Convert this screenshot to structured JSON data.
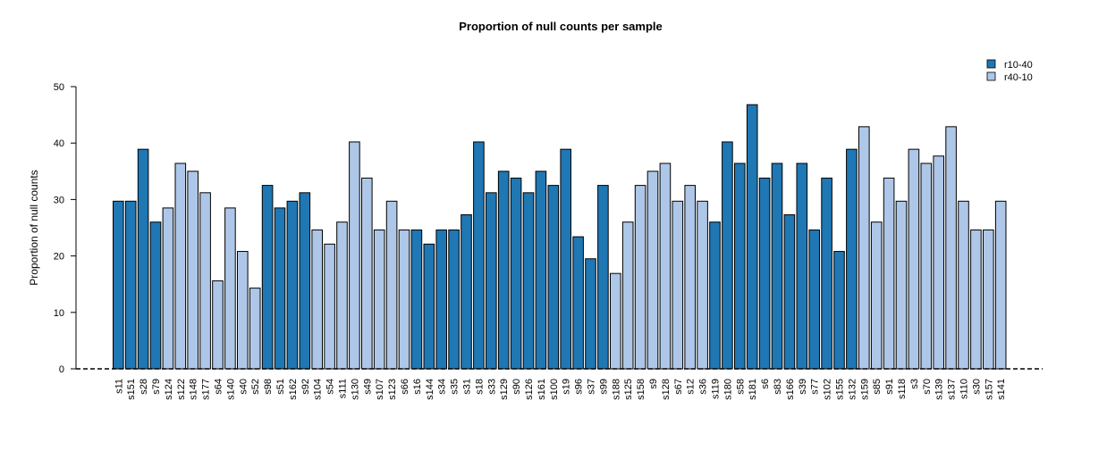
{
  "chart_data": {
    "type": "bar",
    "title": "Proportion of null counts per sample",
    "xlabel": "",
    "ylabel": "Proportion of null counts",
    "ylim": [
      0,
      50
    ],
    "yticks": [
      0,
      10,
      20,
      30,
      40,
      50
    ],
    "grid": false,
    "legend_position": "top-right",
    "legend": [
      {
        "name": "r10-40",
        "color": "#1f77b4"
      },
      {
        "name": "r40-10",
        "color": "#aec7e8"
      }
    ],
    "baseline": {
      "value": 0,
      "style": "dashed"
    },
    "categories": [
      "s11",
      "s151",
      "s28",
      "s79",
      "s124",
      "s122",
      "s148",
      "s177",
      "s64",
      "s140",
      "s40",
      "s52",
      "s98",
      "s51",
      "s162",
      "s92",
      "s104",
      "s54",
      "s111",
      "s130",
      "s49",
      "s107",
      "s123",
      "s66",
      "s16",
      "s144",
      "s34",
      "s35",
      "s31",
      "s18",
      "s33",
      "s129",
      "s90",
      "s126",
      "s161",
      "s100",
      "s19",
      "s96",
      "s37",
      "s99",
      "s188",
      "s125",
      "s158",
      "s9",
      "s128",
      "s67",
      "s12",
      "s36",
      "s119",
      "s180",
      "s58",
      "s181",
      "s6",
      "s83",
      "s166",
      "s39",
      "s77",
      "s102",
      "s155",
      "s132",
      "s159",
      "s85",
      "s91",
      "s118",
      "s3",
      "s70",
      "s139",
      "s137",
      "s110",
      "s30",
      "s157",
      "s141"
    ],
    "values": [
      29.7,
      29.7,
      38.9,
      26.0,
      28.5,
      36.4,
      35.0,
      31.2,
      15.6,
      28.5,
      20.8,
      14.3,
      32.5,
      28.5,
      29.7,
      31.2,
      24.6,
      22.1,
      26.0,
      40.2,
      33.8,
      24.6,
      29.7,
      24.6,
      24.6,
      22.1,
      24.6,
      24.6,
      27.3,
      40.2,
      31.2,
      35.0,
      33.8,
      31.2,
      35.0,
      32.5,
      38.9,
      23.4,
      19.5,
      32.5,
      16.9,
      26.0,
      32.5,
      35.0,
      36.4,
      29.7,
      32.5,
      29.7,
      26.0,
      40.2,
      36.4,
      46.8,
      33.8,
      36.4,
      27.3,
      36.4,
      24.6,
      33.8,
      20.8,
      38.9,
      42.9,
      26.0,
      33.8,
      29.7,
      38.9,
      36.4,
      37.7,
      42.9,
      29.7,
      24.6,
      24.6,
      29.7
    ],
    "groups": [
      "r10-40",
      "r10-40",
      "r10-40",
      "r10-40",
      "r40-10",
      "r40-10",
      "r40-10",
      "r40-10",
      "r40-10",
      "r40-10",
      "r40-10",
      "r40-10",
      "r10-40",
      "r10-40",
      "r10-40",
      "r10-40",
      "r40-10",
      "r40-10",
      "r40-10",
      "r40-10",
      "r40-10",
      "r40-10",
      "r40-10",
      "r40-10",
      "r10-40",
      "r10-40",
      "r10-40",
      "r10-40",
      "r10-40",
      "r10-40",
      "r10-40",
      "r10-40",
      "r10-40",
      "r10-40",
      "r10-40",
      "r10-40",
      "r10-40",
      "r10-40",
      "r10-40",
      "r10-40",
      "r40-10",
      "r40-10",
      "r40-10",
      "r40-10",
      "r40-10",
      "r40-10",
      "r40-10",
      "r40-10",
      "r10-40",
      "r10-40",
      "r10-40",
      "r10-40",
      "r10-40",
      "r10-40",
      "r10-40",
      "r10-40",
      "r10-40",
      "r10-40",
      "r10-40",
      "r10-40",
      "r40-10",
      "r40-10",
      "r40-10",
      "r40-10",
      "r40-10",
      "r40-10",
      "r40-10",
      "r40-10",
      "r40-10",
      "r40-10",
      "r40-10",
      "r40-10"
    ]
  }
}
